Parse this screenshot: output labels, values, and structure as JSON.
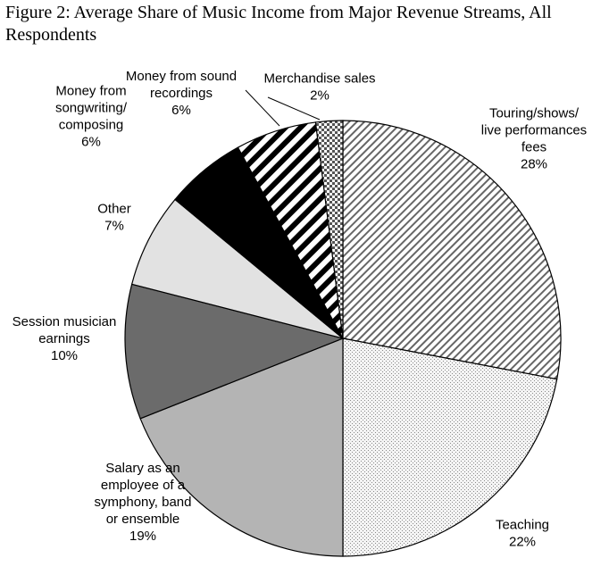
{
  "chart_data": {
    "type": "pie",
    "title": "Figure 2: Average Share of Music Income from Major Revenue Streams, All Respondents",
    "slices": [
      {
        "label": "Touring/shows/\nlive performances\nfees",
        "pct_label": "28%",
        "value": 28
      },
      {
        "label": "Teaching",
        "pct_label": "22%",
        "value": 22
      },
      {
        "label": "Salary as an\nemployee of a\nsymphony, band\nor ensemble",
        "pct_label": "19%",
        "value": 19
      },
      {
        "label": "Session musician\nearnings",
        "pct_label": "10%",
        "value": 10
      },
      {
        "label": "Other",
        "pct_label": "7%",
        "value": 7
      },
      {
        "label": "Money from\nsongwriting/\ncomposing",
        "pct_label": "6%",
        "value": 6
      },
      {
        "label": "Money from sound\nrecordings",
        "pct_label": "6%",
        "value": 6
      },
      {
        "label": "Merchandise sales",
        "pct_label": "2%",
        "value": 2
      }
    ],
    "fills": [
      "diag-hatch",
      "dots",
      "#b4b4b4",
      "#6b6b6b",
      "#e2e2e2",
      "#000000",
      "diag-stripe",
      "checker"
    ]
  }
}
